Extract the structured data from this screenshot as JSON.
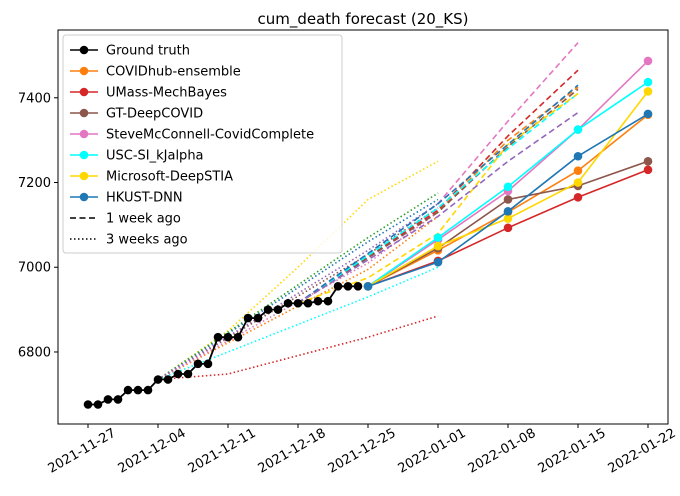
{
  "chart_data": {
    "type": "line",
    "title": "cum_death forecast (20_KS)",
    "xlabel": "",
    "ylabel": "",
    "x_range": [
      "2021-11-24",
      "2022-01-24"
    ],
    "ylim": [
      6630,
      7560
    ],
    "x_ticks": [
      "2021-11-27",
      "2021-12-04",
      "2021-12-11",
      "2021-12-18",
      "2021-12-25",
      "2022-01-01",
      "2022-01-08",
      "2022-01-15",
      "2022-01-22"
    ],
    "y_ticks": [
      6800,
      7000,
      7200,
      7400
    ],
    "grid": false,
    "legend": {
      "position": "top-left",
      "items": [
        {
          "label": "Ground truth",
          "color": "#000000",
          "style": "solid-marker"
        },
        {
          "label": "COVIDhub-ensemble",
          "color": "#ff7f0e",
          "style": "solid-marker"
        },
        {
          "label": "UMass-MechBayes",
          "color": "#d62728",
          "style": "solid-marker"
        },
        {
          "label": "GT-DeepCOVID",
          "color": "#8c564b",
          "style": "solid-marker"
        },
        {
          "label": "SteveMcConnell-CovidComplete",
          "color": "#e377c2",
          "style": "solid-marker"
        },
        {
          "label": "USC-SI_kJalpha",
          "color": "#00ffff",
          "style": "solid-marker"
        },
        {
          "label": "Microsoft-DeepSTIA",
          "color": "#ffd700",
          "style": "solid-marker"
        },
        {
          "label": "HKUST-DNN",
          "color": "#1f77b4",
          "style": "solid-marker"
        },
        {
          "label": "1 week ago",
          "color": "#000000",
          "style": "dashed"
        },
        {
          "label": "3 weeks ago",
          "color": "#000000",
          "style": "dotted"
        }
      ]
    },
    "ground_truth": {
      "name": "Ground truth",
      "color": "#000000",
      "points": [
        [
          "2021-11-27",
          6676
        ],
        [
          "2021-11-28",
          6676
        ],
        [
          "2021-11-29",
          6688
        ],
        [
          "2021-11-30",
          6688
        ],
        [
          "2021-12-01",
          6710
        ],
        [
          "2021-12-02",
          6710
        ],
        [
          "2021-12-03",
          6710
        ],
        [
          "2021-12-04",
          6735
        ],
        [
          "2021-12-05",
          6735
        ],
        [
          "2021-12-06",
          6748
        ],
        [
          "2021-12-07",
          6748
        ],
        [
          "2021-12-08",
          6772
        ],
        [
          "2021-12-09",
          6772
        ],
        [
          "2021-12-10",
          6835
        ],
        [
          "2021-12-11",
          6835
        ],
        [
          "2021-12-12",
          6835
        ],
        [
          "2021-12-13",
          6880
        ],
        [
          "2021-12-14",
          6880
        ],
        [
          "2021-12-15",
          6900
        ],
        [
          "2021-12-16",
          6900
        ],
        [
          "2021-12-17",
          6915
        ],
        [
          "2021-12-18",
          6915
        ],
        [
          "2021-12-19",
          6915
        ],
        [
          "2021-12-20",
          6920
        ],
        [
          "2021-12-21",
          6920
        ],
        [
          "2021-12-22",
          6955
        ],
        [
          "2021-12-23",
          6955
        ],
        [
          "2021-12-24",
          6955
        ]
      ]
    },
    "series": [
      {
        "name": "COVIDhub-ensemble",
        "color": "#ff7f0e",
        "style": "solid",
        "points": [
          [
            "2021-12-25",
            6955
          ],
          [
            "2022-01-01",
            7040
          ],
          [
            "2022-01-08",
            7130
          ],
          [
            "2022-01-15",
            7228
          ],
          [
            "2022-01-22",
            7360
          ]
        ]
      },
      {
        "name": "UMass-MechBayes",
        "color": "#d62728",
        "style": "solid",
        "points": [
          [
            "2021-12-25",
            6955
          ],
          [
            "2022-01-01",
            7015
          ],
          [
            "2022-01-08",
            7093
          ],
          [
            "2022-01-15",
            7165
          ],
          [
            "2022-01-22",
            7230
          ]
        ]
      },
      {
        "name": "GT-DeepCOVID",
        "color": "#8c564b",
        "style": "solid",
        "points": [
          [
            "2021-12-25",
            6955
          ],
          [
            "2022-01-01",
            7045
          ],
          [
            "2022-01-08",
            7160
          ],
          [
            "2022-01-15",
            7192
          ],
          [
            "2022-01-22",
            7250
          ]
        ]
      },
      {
        "name": "SteveMcConnell-CovidComplete",
        "color": "#e377c2",
        "style": "solid",
        "points": [
          [
            "2021-12-25",
            6955
          ],
          [
            "2022-01-01",
            7065
          ],
          [
            "2022-01-08",
            7180
          ],
          [
            "2022-01-15",
            7325
          ],
          [
            "2022-01-22",
            7487
          ]
        ]
      },
      {
        "name": "USC-SI_kJalpha",
        "color": "#00ffff",
        "style": "solid",
        "points": [
          [
            "2021-12-25",
            6955
          ],
          [
            "2022-01-01",
            7070
          ],
          [
            "2022-01-08",
            7190
          ],
          [
            "2022-01-15",
            7325
          ],
          [
            "2022-01-22",
            7437
          ]
        ]
      },
      {
        "name": "Microsoft-DeepSTIA",
        "color": "#ffd700",
        "style": "solid",
        "points": [
          [
            "2021-12-25",
            6955
          ],
          [
            "2022-01-01",
            7050
          ],
          [
            "2022-01-08",
            7115
          ],
          [
            "2022-01-15",
            7200
          ],
          [
            "2022-01-22",
            7415
          ]
        ]
      },
      {
        "name": "HKUST-DNN",
        "color": "#1f77b4",
        "style": "solid",
        "points": [
          [
            "2021-12-25",
            6955
          ],
          [
            "2022-01-01",
            7012
          ],
          [
            "2022-01-08",
            7132
          ],
          [
            "2022-01-15",
            7262
          ],
          [
            "2022-01-22",
            7362
          ]
        ]
      },
      {
        "name": "COVIDhub-ensemble",
        "color": "#ff7f0e",
        "style": "dashed",
        "points": [
          [
            "2021-12-18",
            6915
          ],
          [
            "2022-01-01",
            7130
          ],
          [
            "2022-01-08",
            7300
          ],
          [
            "2022-01-15",
            7425
          ]
        ]
      },
      {
        "name": "UMass-MechBayes",
        "color": "#d62728",
        "style": "dashed",
        "points": [
          [
            "2021-12-18",
            6915
          ],
          [
            "2022-01-01",
            7135
          ],
          [
            "2022-01-08",
            7310
          ],
          [
            "2022-01-15",
            7465
          ]
        ]
      },
      {
        "name": "GT-DeepCOVID",
        "color": "#8c564b",
        "style": "dashed",
        "points": [
          [
            "2021-12-18",
            6915
          ],
          [
            "2022-01-01",
            7130
          ],
          [
            "2022-01-08",
            7285
          ],
          [
            "2022-01-15",
            7420
          ]
        ]
      },
      {
        "name": "SteveMcConnell-CovidComplete",
        "color": "#e377c2",
        "style": "dashed",
        "points": [
          [
            "2021-12-18",
            6915
          ],
          [
            "2022-01-01",
            7150
          ],
          [
            "2022-01-08",
            7345
          ],
          [
            "2022-01-15",
            7530
          ]
        ]
      },
      {
        "name": "USC-SI_kJalpha",
        "color": "#00ffff",
        "style": "dashed",
        "points": [
          [
            "2021-12-18",
            6915
          ],
          [
            "2022-01-01",
            7140
          ],
          [
            "2022-01-08",
            7280
          ],
          [
            "2022-01-15",
            7410
          ]
        ]
      },
      {
        "name": "Microsoft-DeepSTIA",
        "color": "#ffd700",
        "style": "dashed",
        "points": [
          [
            "2021-12-18",
            6915
          ],
          [
            "2021-12-25",
            6975
          ],
          [
            "2022-01-01",
            7080
          ],
          [
            "2022-01-08",
            7290
          ],
          [
            "2022-01-15",
            7410
          ]
        ]
      },
      {
        "name": "HKUST-DNN",
        "color": "#1f77b4",
        "style": "dashed",
        "points": [
          [
            "2021-12-18",
            6915
          ],
          [
            "2022-01-01",
            7150
          ],
          [
            "2022-01-08",
            7290
          ],
          [
            "2022-01-15",
            7430
          ]
        ]
      },
      {
        "name": "HKUST-DNN",
        "color": "#9467bd",
        "style": "dashed",
        "points": [
          [
            "2021-12-18",
            6915
          ],
          [
            "2022-01-01",
            7120
          ],
          [
            "2022-01-08",
            7250
          ],
          [
            "2022-01-15",
            7365
          ]
        ]
      },
      {
        "name": "COVIDhub-ensemble",
        "color": "#ff7f0e",
        "style": "dotted",
        "points": [
          [
            "2021-12-04",
            6735
          ],
          [
            "2021-12-25",
            6995
          ],
          [
            "2022-01-01",
            7120
          ]
        ]
      },
      {
        "name": "UMass-MechBayes",
        "color": "#d62728",
        "style": "dotted",
        "points": [
          [
            "2021-12-04",
            6735
          ],
          [
            "2021-12-11",
            6748
          ],
          [
            "2021-12-25",
            6835
          ],
          [
            "2022-01-01",
            6885
          ]
        ]
      },
      {
        "name": "GT-DeepCOVID",
        "color": "#8c564b",
        "style": "dotted",
        "points": [
          [
            "2021-12-04",
            6735
          ],
          [
            "2021-12-25",
            7030
          ],
          [
            "2022-01-01",
            7140
          ]
        ]
      },
      {
        "name": "SteveMcConnell-CovidComplete",
        "color": "#e377c2",
        "style": "dotted",
        "points": [
          [
            "2021-12-04",
            6735
          ],
          [
            "2021-12-25",
            7010
          ],
          [
            "2022-01-01",
            7130
          ]
        ]
      },
      {
        "name": "USC-SI_kJalpha",
        "color": "#00ffff",
        "style": "dotted",
        "points": [
          [
            "2021-12-04",
            6735
          ],
          [
            "2021-12-25",
            6930
          ],
          [
            "2022-01-01",
            7000
          ]
        ]
      },
      {
        "name": "Microsoft-DeepSTIA",
        "color": "#ffd700",
        "style": "dotted",
        "points": [
          [
            "2021-12-04",
            6735
          ],
          [
            "2021-12-11",
            6850
          ],
          [
            "2021-12-18",
            7000
          ],
          [
            "2021-12-25",
            7160
          ],
          [
            "2022-01-01",
            7250
          ]
        ]
      },
      {
        "name": "HKUST-DNN",
        "color": "#1f77b4",
        "style": "dotted",
        "points": [
          [
            "2021-12-04",
            6735
          ],
          [
            "2021-12-25",
            7060
          ],
          [
            "2022-01-01",
            7160
          ]
        ]
      },
      {
        "name": "GT-DeepCOVID",
        "color": "#2ca02c",
        "style": "dotted",
        "points": [
          [
            "2021-12-04",
            6735
          ],
          [
            "2021-12-25",
            7070
          ],
          [
            "2022-01-01",
            7175
          ]
        ]
      },
      {
        "name": "SteveMcConnell-CovidComplete",
        "color": "#9467bd",
        "style": "dotted",
        "points": [
          [
            "2021-12-04",
            6735
          ],
          [
            "2021-12-25",
            7040
          ],
          [
            "2022-01-01",
            7150
          ]
        ]
      }
    ]
  }
}
